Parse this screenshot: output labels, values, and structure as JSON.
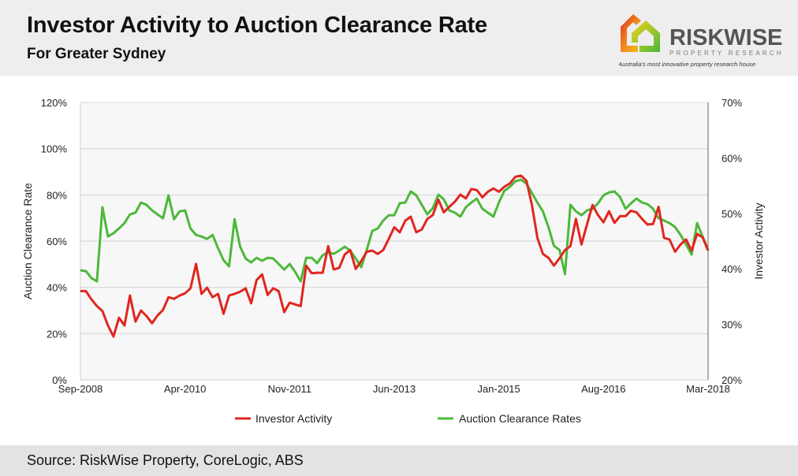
{
  "header": {
    "title": "Investor Activity to Auction Clearance Rate",
    "subtitle": "For Greater Sydney"
  },
  "logo": {
    "name": "RISKWISE",
    "tagline1": "PROPERTY RESEARCH",
    "tagline2": "Australia's most innovative property research house"
  },
  "footer": {
    "source": "Source: RiskWise Property, CoreLogic, ABS"
  },
  "chart_data": {
    "type": "line",
    "title": "",
    "xlabel": "",
    "ylabel_left": "Auction Clearance Rate",
    "ylabel_right": "Investor Activity",
    "x_start": "Sep-2008",
    "x_end": "Mar-2018",
    "x_frequency": "monthly",
    "x_tick_labels": [
      "Sep-2008",
      "Apr-2010",
      "Nov-2011",
      "Jun-2013",
      "Jan-2015",
      "Aug-2016",
      "Mar-2018"
    ],
    "y_left_ticks": [
      "0%",
      "20%",
      "40%",
      "60%",
      "80%",
      "100%",
      "120%"
    ],
    "y_left_range": [
      0,
      120
    ],
    "y_right_ticks": [
      "20%",
      "30%",
      "40%",
      "50%",
      "60%",
      "70%"
    ],
    "y_right_range": [
      20,
      70
    ],
    "grid": true,
    "legend_position": "bottom",
    "series": [
      {
        "name": "Investor Activity",
        "axis": "right",
        "color": "#e0261f",
        "values": [
          36.0,
          36.0,
          34.5,
          33.3,
          32.4,
          29.8,
          27.8,
          31.2,
          29.8,
          35.2,
          30.5,
          32.5,
          31.5,
          30.2,
          31.6,
          32.6,
          34.9,
          34.6,
          35.2,
          35.6,
          36.5,
          40.9,
          35.5,
          36.6,
          34.9,
          35.5,
          31.9,
          35.2,
          35.5,
          35.9,
          36.5,
          33.8,
          38.0,
          39.0,
          35.3,
          36.5,
          36.0,
          32.2,
          33.9,
          33.6,
          33.3,
          40.6,
          39.2,
          39.3,
          39.3,
          44.1,
          39.9,
          40.2,
          42.6,
          43.4,
          40.0,
          41.4,
          43.1,
          43.3,
          42.7,
          43.4,
          45.4,
          47.5,
          46.6,
          48.7,
          49.4,
          46.6,
          47.1,
          49.0,
          49.7,
          52.5,
          50.2,
          51.2,
          52.1,
          53.4,
          52.7,
          54.4,
          54.2,
          52.9,
          53.9,
          54.5,
          53.9,
          54.8,
          55.4,
          56.6,
          56.8,
          55.9,
          51.5,
          45.6,
          42.7,
          42.0,
          40.6,
          41.9,
          43.4,
          44.1,
          49.0,
          44.4,
          48.0,
          51.5,
          49.7,
          48.4,
          50.4,
          48.3,
          49.5,
          49.5,
          50.5,
          50.2,
          49.0,
          48.0,
          48.1,
          51.2,
          45.6,
          45.3,
          43.1,
          44.4,
          45.3,
          43.3,
          46.3,
          45.7,
          43.3
        ]
      },
      {
        "name": "Auction Clearance Rates",
        "axis": "left",
        "color": "#4db83a",
        "values": [
          47.4,
          47.0,
          44.0,
          42.6,
          74.7,
          62.0,
          63.4,
          65.5,
          67.8,
          71.6,
          72.3,
          76.7,
          75.7,
          73.3,
          71.6,
          69.9,
          79.8,
          69.5,
          72.9,
          73.3,
          65.5,
          62.7,
          62.0,
          61.0,
          62.7,
          56.9,
          51.8,
          49.1,
          69.5,
          57.6,
          52.5,
          50.8,
          52.8,
          51.5,
          52.8,
          52.5,
          50.1,
          47.7,
          50.1,
          46.7,
          42.6,
          52.8,
          52.8,
          50.5,
          53.9,
          55.2,
          54.5,
          55.9,
          57.6,
          55.9,
          52.5,
          48.7,
          56.2,
          64.4,
          65.5,
          68.9,
          71.2,
          71.2,
          76.4,
          76.7,
          81.5,
          79.8,
          75.7,
          71.6,
          74.3,
          80.1,
          78.1,
          73.3,
          72.3,
          70.6,
          74.7,
          76.7,
          78.4,
          74.0,
          72.3,
          70.6,
          76.7,
          81.8,
          83.5,
          85.9,
          86.6,
          84.9,
          80.8,
          76.7,
          72.9,
          66.1,
          58.0,
          56.2,
          45.7,
          75.7,
          72.9,
          71.2,
          73.3,
          74.0,
          76.4,
          79.8,
          81.1,
          81.5,
          79.1,
          74.0,
          76.4,
          78.4,
          76.7,
          76.0,
          74.0,
          69.9,
          68.9,
          67.8,
          66.1,
          62.7,
          58.6,
          54.2,
          67.8,
          62.0,
          56.2
        ]
      }
    ]
  }
}
